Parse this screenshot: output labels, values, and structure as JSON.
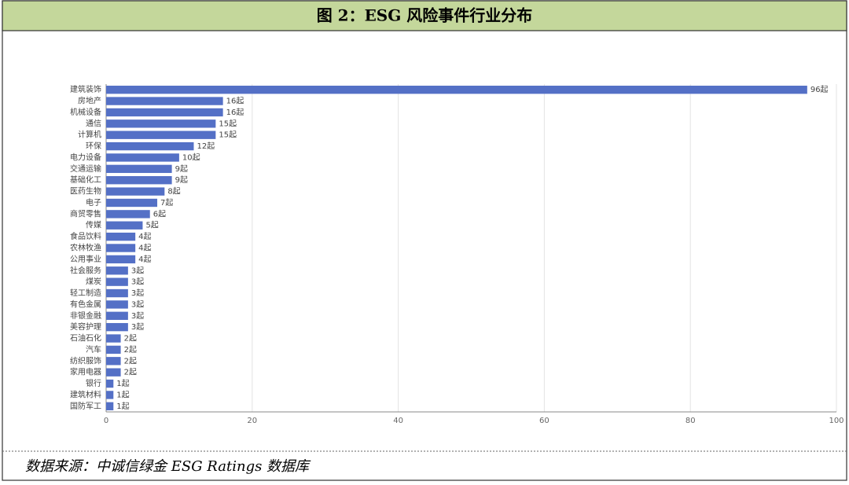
{
  "chart_data": {
    "type": "barh",
    "title": "图 2：ESG 风险事件行业分布",
    "source": "数据来源：中诚信绿金 ESG Ratings 数据库",
    "categories": [
      "建筑装饰",
      "房地产",
      "机械设备",
      "通信",
      "计算机",
      "环保",
      "电力设备",
      "交通运输",
      "基础化工",
      "医药生物",
      "电子",
      "商贸零售",
      "传媒",
      "食品饮料",
      "农林牧渔",
      "公用事业",
      "社会服务",
      "煤炭",
      "轻工制造",
      "有色金属",
      "非银金融",
      "美容护理",
      "石油石化",
      "汽车",
      "纺织服饰",
      "家用电器",
      "银行",
      "建筑材料",
      "国防军工"
    ],
    "values": [
      96,
      16,
      16,
      15,
      15,
      12,
      10,
      9,
      9,
      8,
      7,
      6,
      5,
      4,
      4,
      4,
      3,
      3,
      3,
      3,
      3,
      3,
      2,
      2,
      2,
      2,
      1,
      1,
      1
    ],
    "value_labels": [
      "96起",
      "16起",
      "16起",
      "15起",
      "15起",
      "12起",
      "10起",
      "9起",
      "9起",
      "8起",
      "7起",
      "6起",
      "5起",
      "4起",
      "4起",
      "4起",
      "3起",
      "3起",
      "3起",
      "3起",
      "3起",
      "3起",
      "2起",
      "2起",
      "2起",
      "2起",
      "1起",
      "1起",
      "1起"
    ],
    "color": "#5470c6",
    "xlim": [
      0,
      100
    ],
    "xticks": [
      0,
      20,
      40,
      60,
      80,
      100
    ],
    "grid": true
  }
}
